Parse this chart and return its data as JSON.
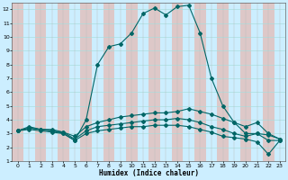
{
  "xlabel": "Humidex (Indice chaleur)",
  "bg_color": "#cceeff",
  "plot_bg_color": "#cceeff",
  "grid_color_v": "#e8c8c8",
  "grid_color_h": "#aadddd",
  "line_color": "#006666",
  "xlim": [
    -0.5,
    23.5
  ],
  "ylim": [
    1,
    12.5
  ],
  "xticks": [
    0,
    1,
    2,
    3,
    4,
    5,
    6,
    7,
    8,
    9,
    10,
    11,
    12,
    13,
    14,
    15,
    16,
    17,
    18,
    19,
    20,
    21,
    22,
    23
  ],
  "yticks": [
    1,
    2,
    3,
    4,
    5,
    6,
    7,
    8,
    9,
    10,
    11,
    12
  ],
  "lines": [
    {
      "x": [
        0,
        1,
        2,
        3,
        4,
        5,
        6,
        7,
        8,
        9,
        10,
        11,
        12,
        13,
        14,
        15,
        16,
        17,
        18,
        19,
        20,
        21,
        22,
        23
      ],
      "y": [
        3.2,
        3.5,
        3.3,
        3.2,
        3.0,
        2.5,
        4.0,
        8.0,
        9.3,
        9.5,
        10.3,
        11.7,
        12.1,
        11.6,
        12.2,
        12.3,
        10.3,
        7.0,
        5.0,
        3.8,
        3.0,
        3.0,
        2.9,
        2.6
      ]
    },
    {
      "x": [
        0,
        1,
        2,
        3,
        4,
        5,
        6,
        7,
        8,
        9,
        10,
        11,
        12,
        13,
        14,
        15,
        16,
        17,
        18,
        19,
        20,
        21,
        22,
        23
      ],
      "y": [
        3.2,
        3.4,
        3.3,
        3.3,
        3.1,
        2.8,
        3.5,
        3.8,
        4.0,
        4.2,
        4.3,
        4.4,
        4.5,
        4.5,
        4.6,
        4.8,
        4.6,
        4.4,
        4.1,
        3.8,
        3.5,
        3.8,
        3.0,
        2.6
      ]
    },
    {
      "x": [
        0,
        1,
        2,
        3,
        4,
        5,
        6,
        7,
        8,
        9,
        10,
        11,
        12,
        13,
        14,
        15,
        16,
        17,
        18,
        19,
        20,
        21,
        22,
        23
      ],
      "y": [
        3.2,
        3.4,
        3.3,
        3.2,
        3.1,
        2.6,
        3.2,
        3.5,
        3.6,
        3.7,
        3.8,
        3.9,
        4.0,
        4.0,
        4.1,
        4.0,
        3.8,
        3.5,
        3.3,
        3.0,
        2.8,
        3.0,
        2.5,
        2.5
      ]
    },
    {
      "x": [
        0,
        1,
        2,
        3,
        4,
        5,
        6,
        7,
        8,
        9,
        10,
        11,
        12,
        13,
        14,
        15,
        16,
        17,
        18,
        19,
        20,
        21,
        22,
        23
      ],
      "y": [
        3.2,
        3.3,
        3.2,
        3.1,
        3.0,
        2.5,
        3.0,
        3.2,
        3.3,
        3.4,
        3.5,
        3.5,
        3.6,
        3.6,
        3.6,
        3.5,
        3.3,
        3.1,
        2.8,
        2.7,
        2.6,
        2.4,
        1.5,
        2.5
      ]
    }
  ]
}
